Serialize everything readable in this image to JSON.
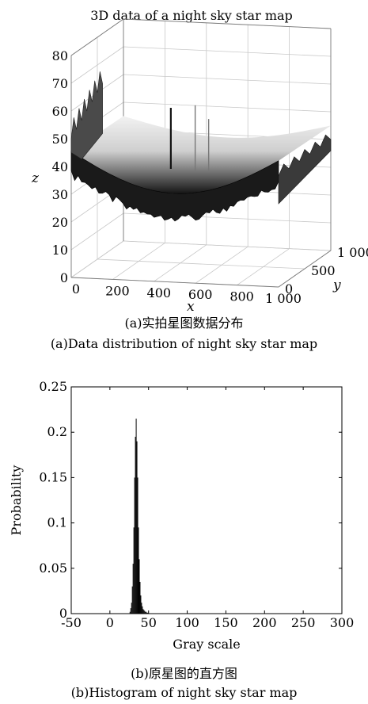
{
  "chart_data": [
    {
      "type": "surface",
      "title": "3D data of a night sky star map",
      "xlabel": "x",
      "ylabel": "y",
      "zlabel": "z",
      "xlim": [
        0,
        1000
      ],
      "ylim": [
        0,
        1000
      ],
      "zlim": [
        0,
        80
      ],
      "xticks": [
        "0",
        "200",
        "400",
        "600",
        "800",
        "1 000"
      ],
      "yticks": [
        "0",
        "500",
        "1 000"
      ],
      "zticks": [
        "0",
        "10",
        "20",
        "30",
        "40",
        "50",
        "60",
        "70",
        "80"
      ],
      "grid": true,
      "surface_level_range": [
        25,
        45
      ],
      "star_spikes": [
        {
          "x": 430,
          "y": 200,
          "z": 60
        },
        {
          "x": 560,
          "y": 150,
          "z": 62
        },
        {
          "x": 620,
          "y": 170,
          "z": 57
        }
      ],
      "caption_cn": "(a)实拍星图数据分布",
      "caption_en": "(a)Data distribution of night sky star map"
    },
    {
      "type": "bar",
      "subtype": "histogram",
      "xlabel": "Gray scale",
      "ylabel": "Probability",
      "xlim": [
        -50,
        300
      ],
      "ylim": [
        0,
        0.25
      ],
      "xticks": [
        "-50",
        "0",
        "50",
        "100",
        "150",
        "200",
        "250",
        "300"
      ],
      "yticks": [
        "0",
        "0.05",
        "0.1",
        "0.15",
        "0.2",
        "0.25"
      ],
      "x": [
        26,
        27,
        28,
        29,
        30,
        31,
        32,
        33,
        34,
        35,
        36,
        37,
        38,
        39,
        40,
        41,
        42,
        43,
        44,
        45,
        46,
        47,
        48,
        49,
        50
      ],
      "values": [
        0.002,
        0.006,
        0.012,
        0.03,
        0.055,
        0.095,
        0.15,
        0.195,
        0.215,
        0.19,
        0.15,
        0.095,
        0.06,
        0.035,
        0.02,
        0.012,
        0.008,
        0.005,
        0.004,
        0.003,
        0.002,
        0.002,
        0.001,
        0.001,
        0.001
      ],
      "caption_cn": "(b)原星图的直方图",
      "caption_en": "(b)Histogram of night sky star map"
    }
  ]
}
